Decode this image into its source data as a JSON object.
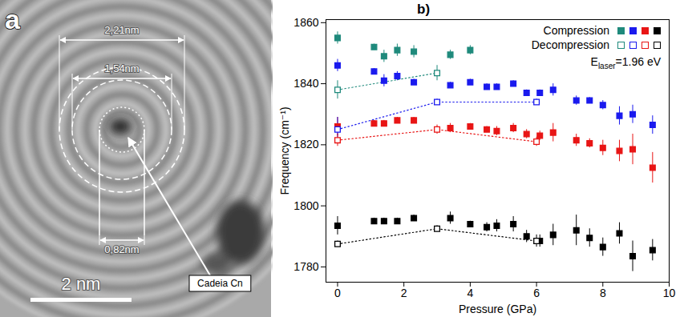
{
  "image_panel": {
    "letter": "a",
    "dimensions": [
      "2,21nm",
      "1,54nm",
      "0,82nm"
    ],
    "scale_bar": "2 nm",
    "pointer_label": "Cadeia Cn"
  },
  "chart_data": {
    "type": "scatter",
    "title": "b)",
    "xlabel": "Pressure (GPa)",
    "ylabel": "Frequency (cm⁻¹)",
    "xlim": [
      -0.35,
      10
    ],
    "xticks": [
      0,
      2,
      4,
      6,
      8,
      10
    ],
    "ylim": [
      1775,
      1861
    ],
    "yticks": [
      1780,
      1800,
      1820,
      1840,
      1860
    ],
    "legend": "top-right",
    "annotation": {
      "base": "E",
      "sub": "laser",
      "text": "=1.96 eV"
    },
    "series": [
      {
        "name": "Compression",
        "color": "#1f8a7c",
        "marker": "square",
        "line_style": "none",
        "x": [
          0,
          1.1,
          1.4,
          1.8,
          2.3,
          3.4,
          4.0
        ],
        "values": [
          1855,
          1852,
          1849,
          1851,
          1850.5,
          1849.5,
          1851
        ],
        "errors": [
          2,
          1,
          2,
          2,
          2,
          1.5,
          1.5
        ]
      },
      {
        "name": "Compression",
        "color": "#1a1aee",
        "marker": "square",
        "line_style": "none",
        "x": [
          0,
          1.1,
          1.4,
          1.8,
          2.3,
          3.4,
          4.0,
          4.5,
          4.8,
          5.3,
          5.7,
          6.1,
          6.5,
          7.2,
          7.6,
          8.0,
          8.5,
          8.9,
          9.5
        ],
        "values": [
          1846,
          1844,
          1841,
          1842.5,
          1840.5,
          1839.5,
          1840.5,
          1839,
          1839,
          1840,
          1837,
          1837,
          1838,
          1834.5,
          1834.5,
          1833,
          1829.5,
          1830,
          1826.5
        ],
        "errors": [
          2,
          1,
          2,
          1.5,
          1,
          1,
          1,
          1,
          1,
          1,
          1,
          1,
          2,
          1.5,
          1,
          1.5,
          3,
          3,
          3
        ]
      },
      {
        "name": "Compression",
        "color": "#e81515",
        "marker": "square",
        "line_style": "none",
        "x": [
          0,
          1.1,
          1.4,
          1.8,
          2.3,
          3.4,
          4.0,
          4.5,
          4.8,
          5.3,
          5.7,
          6.1,
          6.5,
          7.2,
          7.6,
          8.0,
          8.5,
          8.9,
          9.5
        ],
        "values": [
          1826,
          1827,
          1827,
          1828,
          1828,
          1825.5,
          1826,
          1825,
          1824.5,
          1825.5,
          1823.5,
          1823,
          1824,
          1821.5,
          1820.5,
          1819,
          1818,
          1818.5,
          1812.5
        ],
        "errors": [
          3,
          1,
          1,
          1,
          1,
          1.5,
          1,
          1,
          1.5,
          1.5,
          1.5,
          1.5,
          3,
          2,
          1.5,
          2.5,
          3.5,
          5,
          5
        ]
      },
      {
        "name": "Compression",
        "color": "#000000",
        "marker": "square",
        "line_style": "none",
        "x": [
          0,
          1.1,
          1.4,
          1.8,
          2.3,
          3.4,
          4.0,
          4.5,
          4.8,
          5.3,
          5.7,
          6.1,
          6.5,
          7.2,
          7.6,
          8.0,
          8.5,
          8.9,
          9.5
        ],
        "values": [
          1793.5,
          1795,
          1795,
          1795,
          1796,
          1796,
          1794,
          1793,
          1793.5,
          1794,
          1790,
          1788.5,
          1790.5,
          1792,
          1789.5,
          1786.5,
          1791,
          1783.5,
          1785.5
        ],
        "errors": [
          3,
          1,
          1,
          1,
          1,
          2,
          1,
          1.5,
          2,
          2.5,
          2,
          2,
          3.5,
          5,
          3,
          3,
          3.5,
          5,
          3.5
        ]
      },
      {
        "name": "Decompression",
        "color": "#1f8a7c",
        "marker": "open_square",
        "line_style": "dotted",
        "x": [
          0,
          3
        ],
        "values": [
          1838,
          1843.5
        ],
        "errors": [
          3,
          2.5
        ]
      },
      {
        "name": "Decompression",
        "color": "#1a1aee",
        "marker": "open_square",
        "line_style": "dotted",
        "x": [
          0,
          3,
          6
        ],
        "values": [
          1825,
          1834,
          1834
        ],
        "errors": [
          4,
          1,
          1
        ]
      },
      {
        "name": "Decompression",
        "color": "#e81515",
        "marker": "open_square",
        "line_style": "dotted",
        "x": [
          0,
          3,
          6
        ],
        "values": [
          1821.5,
          1825,
          1821
        ],
        "errors": [
          2,
          1.5,
          1.5
        ]
      },
      {
        "name": "Decompression",
        "color": "#000000",
        "marker": "open_square",
        "line_style": "dotted",
        "x": [
          0,
          3,
          6
        ],
        "values": [
          1787.5,
          1792.5,
          1788.5
        ],
        "errors": [
          1,
          1,
          2
        ]
      }
    ]
  }
}
